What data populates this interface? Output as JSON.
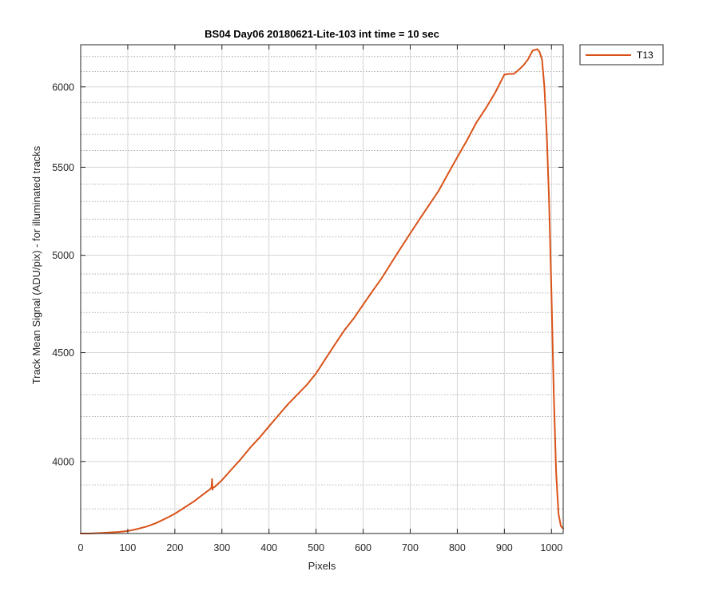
{
  "chart_data": {
    "type": "line",
    "title": "BS04 Day06 20180621-Lite-103 int time = 10 sec",
    "xlabel": "Pixels",
    "ylabel": "Track Mean Signal (ADU/pix) - for illuminated tracks",
    "xlim": [
      0,
      1025
    ],
    "ylim": [
      3700,
      6280
    ],
    "yscale": "log",
    "x_ticks": [
      0,
      100,
      200,
      300,
      400,
      500,
      600,
      700,
      800,
      900,
      1000
    ],
    "y_ticks": [
      4000,
      4500,
      5000,
      5500,
      6000
    ],
    "y_minor_grid": [
      3700,
      3800,
      3900,
      4100,
      4200,
      4300,
      4400,
      4600,
      4700,
      4800,
      4900,
      5100,
      5200,
      5300,
      5400,
      5600,
      5700,
      5800,
      5900,
      6100,
      6200
    ],
    "grid": true,
    "minor_grid": true,
    "legend_location": "outside-right-top",
    "series": [
      {
        "name": "T13",
        "color": "#D95319",
        "x": [
          0,
          20,
          40,
          60,
          80,
          100,
          120,
          140,
          160,
          180,
          200,
          220,
          240,
          260,
          275,
          278,
          279,
          280,
          281,
          285,
          300,
          320,
          340,
          360,
          380,
          400,
          420,
          440,
          460,
          480,
          500,
          520,
          540,
          560,
          580,
          600,
          620,
          640,
          660,
          680,
          700,
          720,
          740,
          760,
          780,
          800,
          820,
          840,
          860,
          880,
          900,
          910,
          920,
          930,
          940,
          950,
          960,
          970,
          975,
          980,
          985,
          990,
          995,
          1000,
          1005,
          1010,
          1015,
          1020,
          1025
        ],
        "y": [
          3700,
          3700,
          3702,
          3704,
          3706,
          3710,
          3718,
          3728,
          3742,
          3760,
          3780,
          3805,
          3830,
          3860,
          3882,
          3890,
          3925,
          3880,
          3888,
          3892,
          3920,
          3965,
          4010,
          4060,
          4105,
          4155,
          4205,
          4255,
          4300,
          4345,
          4400,
          4470,
          4540,
          4610,
          4670,
          4740,
          4810,
          4880,
          4960,
          5040,
          5120,
          5200,
          5280,
          5360,
          5460,
          5560,
          5660,
          5770,
          5860,
          5960,
          6080,
          6085,
          6085,
          6110,
          6140,
          6180,
          6240,
          6250,
          6230,
          6180,
          6000,
          5700,
          5300,
          4800,
          4300,
          3950,
          3780,
          3730,
          3720
        ]
      }
    ]
  }
}
